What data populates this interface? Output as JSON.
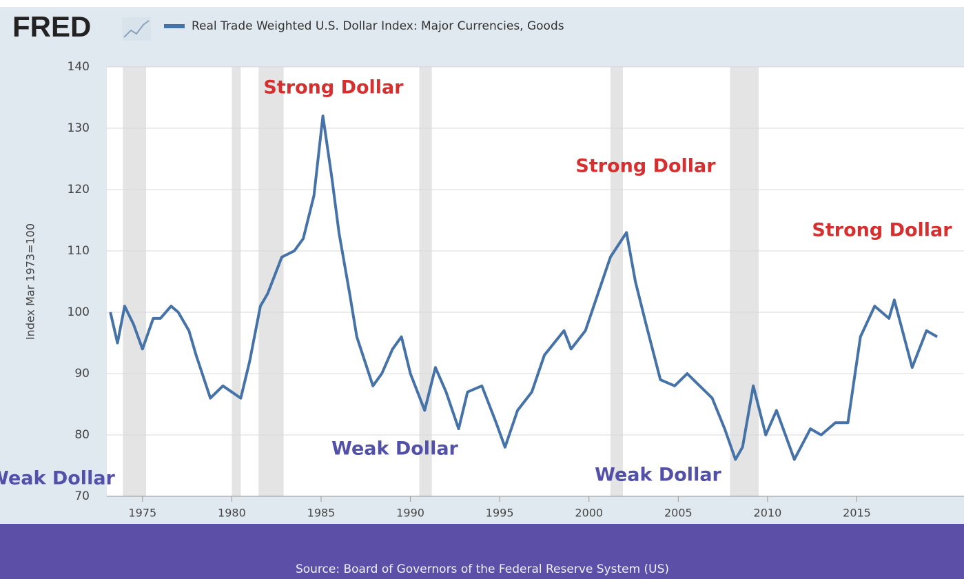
{
  "logo": "FRED",
  "chart_data": {
    "type": "line",
    "series": [
      {
        "name": "Real Trade Weighted U.S. Dollar Index: Major Currencies, Goods",
        "color": "#4572a7",
        "x": [
          1973.2,
          1973.6,
          1974.0,
          1974.5,
          1975.0,
          1975.6,
          1976.0,
          1976.6,
          1977.0,
          1977.6,
          1978.0,
          1978.8,
          1979.5,
          1980.0,
          1980.5,
          1981.0,
          1981.6,
          1982.0,
          1982.8,
          1983.5,
          1984.0,
          1984.6,
          1985.1,
          1985.6,
          1986.0,
          1986.6,
          1987.0,
          1987.9,
          1988.4,
          1989.0,
          1989.5,
          1990.0,
          1990.8,
          1991.4,
          1992.0,
          1992.7,
          1993.2,
          1994.0,
          1994.8,
          1995.3,
          1996.0,
          1996.8,
          1997.5,
          1998.6,
          1999.0,
          1999.8,
          2000.5,
          2001.2,
          2002.1,
          2002.6,
          2003.2,
          2004.0,
          2004.8,
          2005.5,
          2006.2,
          2006.9,
          2007.6,
          2008.2,
          2008.6,
          2009.2,
          2009.9,
          2010.5,
          2011.5,
          2012.4,
          2013.0,
          2013.8,
          2014.5,
          2015.2,
          2016.0,
          2016.8,
          2017.1,
          2018.1,
          2018.9,
          2019.5
        ],
        "values": [
          100,
          95,
          101,
          98,
          94,
          99,
          99,
          101,
          100,
          97,
          93,
          86,
          88,
          87,
          86,
          92,
          101,
          103,
          109,
          110,
          112,
          119,
          132,
          122,
          113,
          103,
          96,
          88,
          90,
          94,
          96,
          90,
          84,
          91,
          87,
          81,
          87,
          88,
          82,
          78,
          84,
          87,
          93,
          97,
          94,
          97,
          103,
          109,
          113,
          105,
          98,
          89,
          88,
          90,
          88,
          86,
          81,
          76,
          78,
          88,
          80,
          84,
          76,
          81,
          80,
          82,
          82,
          96,
          101,
          99,
          102,
          91,
          97,
          96
        ]
      }
    ],
    "y_label": "Index Mar 1973=100",
    "ylim": [
      70,
      140
    ],
    "yticks": [
      70,
      80,
      90,
      100,
      110,
      120,
      130,
      140
    ],
    "xlim": [
      1973,
      2021
    ],
    "xticks": [
      1975,
      1980,
      1985,
      1990,
      1995,
      2000,
      2005,
      2010,
      2015
    ],
    "grid": true,
    "recessions": [
      [
        1973.9,
        1975.2
      ],
      [
        1980.0,
        1980.5
      ],
      [
        1981.5,
        1982.9
      ],
      [
        1990.5,
        1991.2
      ],
      [
        2001.2,
        2001.9
      ],
      [
        2007.9,
        2009.5
      ]
    ],
    "annotations": [
      "Strong Dollar",
      "Strong Dollar",
      "Strong Dollar",
      "Weak Dollar",
      "Weak Dollar",
      "Weak Dollar"
    ],
    "source": "Source: Board of Governors of the Federal Reserve System (US)"
  }
}
